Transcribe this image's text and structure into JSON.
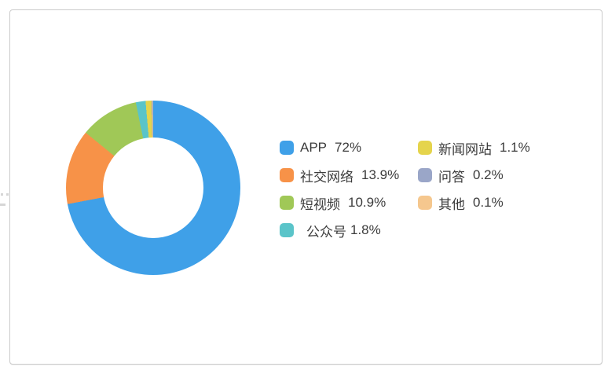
{
  "chart_data": {
    "type": "pie",
    "subtype": "donut",
    "title": "",
    "legend_position": "right",
    "start_angle_deg": 0,
    "direction": "clockwise",
    "inner_radius_ratio": 0.58,
    "series": [
      {
        "label": "APP",
        "value": 72,
        "display": "72%",
        "color": "#3fa0e8"
      },
      {
        "label": "社交网络",
        "value": 13.9,
        "display": "13.9%",
        "color": "#f79248"
      },
      {
        "label": "短视频",
        "value": 10.9,
        "display": "10.9%",
        "color": "#a0c857"
      },
      {
        "label": "公众号",
        "value": 1.8,
        "display": "1.8%",
        "color": "#5ac4c9"
      },
      {
        "label": "新闻网站",
        "value": 1.1,
        "display": "1.1%",
        "color": "#e5d44c"
      },
      {
        "label": "问答",
        "value": 0.2,
        "display": "0.2%",
        "color": "#9aa6c8"
      },
      {
        "label": "其他",
        "value": 0.1,
        "display": "0.1%",
        "color": "#f5c78e"
      }
    ]
  }
}
